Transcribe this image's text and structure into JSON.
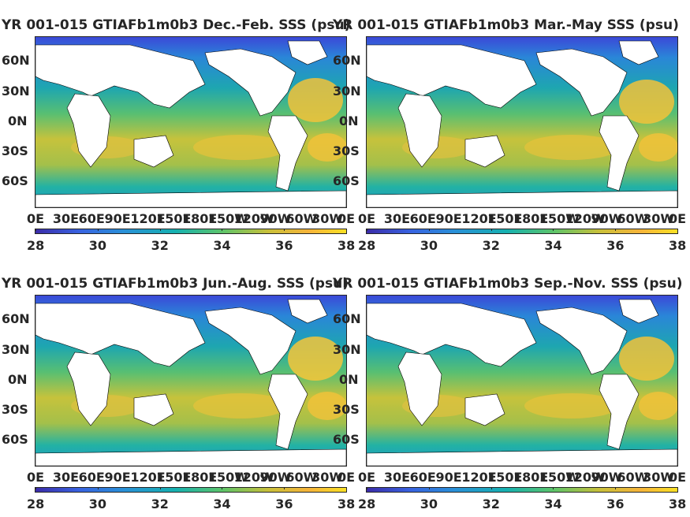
{
  "colors": {
    "ocean_low": "#3b2ca8",
    "ocean_mid": "#16b1b0",
    "ocean_high": "#f9e024",
    "land": "#ffffff",
    "text": "#262626"
  },
  "chart_data": [
    {
      "type": "heatmap",
      "title": "YR 001-015 GTIAFb1m0b3 Dec.-Feb. SSS (psu)",
      "x_tick_labels": [
        "0E",
        "30E",
        "60E",
        "90E",
        "120E",
        "150E",
        "180E",
        "150W",
        "120W",
        "90W",
        "60W",
        "30W",
        "0E"
      ],
      "y_tick_labels": [
        "60N",
        "30N",
        "0N",
        "30S",
        "60S"
      ],
      "colorbar": {
        "ticks": [
          "28",
          "30",
          "32",
          "34",
          "36",
          "38"
        ],
        "range": [
          28,
          38
        ],
        "colormap": "parula"
      }
    },
    {
      "type": "heatmap",
      "title": "YR 001-015 GTIAFb1m0b3 Mar.-May SSS (psu)",
      "x_tick_labels": [
        "0E",
        "30E",
        "60E",
        "90E",
        "120E",
        "150E",
        "180E",
        "150W",
        "120W",
        "90W",
        "60W",
        "30W",
        "0E"
      ],
      "y_tick_labels": [
        "60N",
        "30N",
        "0N",
        "30S",
        "60S"
      ],
      "colorbar": {
        "ticks": [
          "28",
          "30",
          "32",
          "34",
          "36",
          "38"
        ],
        "range": [
          28,
          38
        ],
        "colormap": "parula"
      }
    },
    {
      "type": "heatmap",
      "title": "YR 001-015 GTIAFb1m0b3 Jun.-Aug. SSS (psu)",
      "x_tick_labels": [
        "0E",
        "30E",
        "60E",
        "90E",
        "120E",
        "150E",
        "180E",
        "150W",
        "120W",
        "90W",
        "60W",
        "30W",
        "0E"
      ],
      "y_tick_labels": [
        "60N",
        "30N",
        "0N",
        "30S",
        "60S"
      ],
      "colorbar": {
        "ticks": [
          "28",
          "30",
          "32",
          "34",
          "36",
          "38"
        ],
        "range": [
          28,
          38
        ],
        "colormap": "parula"
      }
    },
    {
      "type": "heatmap",
      "title": "YR 001-015 GTIAFb1m0b3 Sep.-Nov. SSS (psu)",
      "x_tick_labels": [
        "0E",
        "30E",
        "60E",
        "90E",
        "120E",
        "150E",
        "180E",
        "150W",
        "120W",
        "90W",
        "60W",
        "30W",
        "0E"
      ],
      "y_tick_labels": [
        "60N",
        "30N",
        "0N",
        "30S",
        "60S"
      ],
      "colorbar": {
        "ticks": [
          "28",
          "30",
          "32",
          "34",
          "36",
          "38"
        ],
        "range": [
          28,
          38
        ],
        "colormap": "parula"
      }
    }
  ]
}
